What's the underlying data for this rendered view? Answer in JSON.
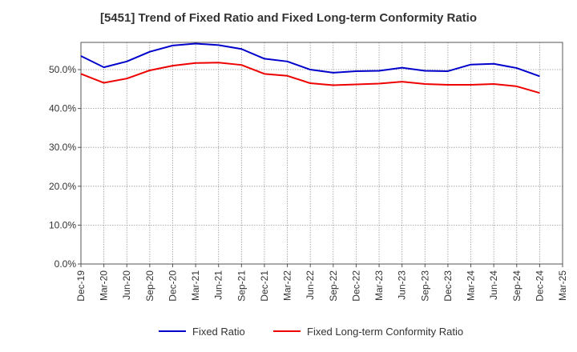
{
  "chart_data": {
    "type": "line",
    "title": "[5451]  Trend of Fixed Ratio and Fixed Long-term Conformity Ratio",
    "xlabel": "",
    "ylabel": "",
    "categories": [
      "Dec-19",
      "Mar-20",
      "Jun-20",
      "Sep-20",
      "Dec-20",
      "Mar-21",
      "Jun-21",
      "Sep-21",
      "Dec-21",
      "Mar-22",
      "Jun-22",
      "Sep-22",
      "Dec-22",
      "Mar-23",
      "Jun-23",
      "Sep-23",
      "Dec-23",
      "Mar-24",
      "Jun-24",
      "Sep-24",
      "Dec-24",
      "Mar-25"
    ],
    "ylim": [
      0,
      57
    ],
    "yticks": [
      0,
      10,
      20,
      30,
      40,
      50
    ],
    "ytick_labels": [
      "0.0%",
      "10.0%",
      "20.0%",
      "30.0%",
      "40.0%",
      "50.0%"
    ],
    "grid": true,
    "legend_position": "bottom",
    "series": [
      {
        "name": "Fixed Ratio",
        "color": "#0000cc",
        "values": [
          53.5,
          50.6,
          52.1,
          54.6,
          56.2,
          56.7,
          56.3,
          55.3,
          52.8,
          52.1,
          50.0,
          49.2,
          49.6,
          49.7,
          50.5,
          49.7,
          49.6,
          51.3,
          51.5,
          50.4,
          48.3,
          null
        ]
      },
      {
        "name": "Fixed Long-term Conformity Ratio",
        "color": "#ee0000",
        "values": [
          48.9,
          46.6,
          47.7,
          49.8,
          51.0,
          51.7,
          51.8,
          51.2,
          48.9,
          48.4,
          46.5,
          46.0,
          46.2,
          46.4,
          46.9,
          46.3,
          46.1,
          46.1,
          46.3,
          45.7,
          44.0,
          null
        ]
      }
    ]
  }
}
